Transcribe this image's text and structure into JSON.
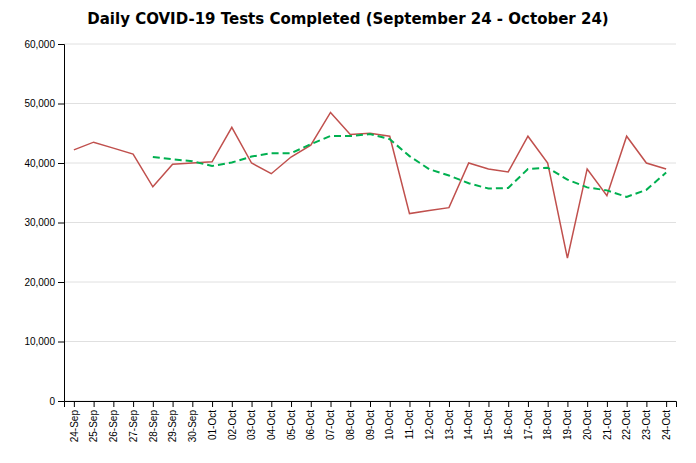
{
  "chart_data": {
    "type": "line",
    "title": "Daily COVID-19 Tests Completed (September 24 - October 24)",
    "categories": [
      "24-Sep",
      "25-Sep",
      "26-Sep",
      "27-Sep",
      "28-Sep",
      "29-Sep",
      "30-Sep",
      "01-Oct",
      "02-Oct",
      "03-Oct",
      "04-Oct",
      "05-Oct",
      "06-Oct",
      "07-Oct",
      "08-Oct",
      "09-Oct",
      "10-Oct",
      "11-Oct",
      "12-Oct",
      "13-Oct",
      "14-Oct",
      "15-Oct",
      "16-Oct",
      "17-Oct",
      "18-Oct",
      "19-Oct",
      "20-Oct",
      "21-Oct",
      "22-Oct",
      "23-Oct",
      "24-Oct"
    ],
    "series": [
      {
        "color": "#c0504d",
        "line_style": "solid",
        "values": [
          42200,
          43500,
          42500,
          41500,
          36000,
          39800,
          40000,
          40200,
          46000,
          40000,
          38200,
          41000,
          43000,
          48500,
          44800,
          45000,
          44500,
          31500,
          32000,
          32500,
          40000,
          39000,
          38500,
          44500,
          40000,
          24000,
          39000,
          34500,
          44500,
          40000,
          39000
        ]
      },
      {
        "color": "#00b050",
        "line_style": "dashed",
        "values": [
          null,
          null,
          null,
          null,
          41000,
          40620,
          40300,
          39500,
          40080,
          41080,
          41640,
          41640,
          43160,
          44540,
          44520,
          44860,
          44000,
          41160,
          38960,
          37900,
          36600,
          35700,
          35800,
          39000,
          39200,
          37200,
          35900,
          35400,
          34300,
          35500,
          38400
        ]
      }
    ],
    "ylim": [
      0,
      60000
    ],
    "yticks": [
      0,
      {
        "value": 10000,
        "label": "10,000"
      },
      {
        "value": 20000,
        "label": "20,000"
      },
      {
        "value": 30000,
        "label": "30,000"
      },
      {
        "value": 40000,
        "label": "40,000"
      },
      {
        "value": 50000,
        "label": "50,000"
      },
      {
        "value": 60000,
        "label": "60,000"
      }
    ],
    "grid": true
  }
}
